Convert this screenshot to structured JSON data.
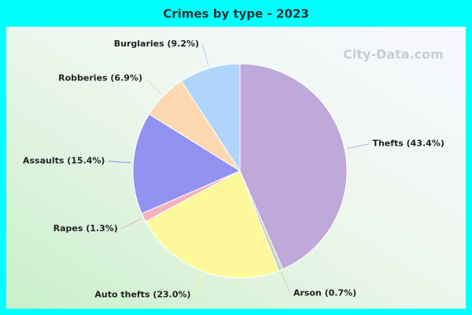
{
  "chart_data": {
    "type": "pie",
    "title": "Crimes by type - 2023",
    "categories": [
      "Thefts (43.4%)",
      "Arson (0.7%)",
      "Auto thefts (23.0%)",
      "Rapes (1.3%)",
      "Assaults (15.4%)",
      "Robberies (6.9%)",
      "Burglaries (9.2%)"
    ],
    "values": [
      43.4,
      0.7,
      23.0,
      1.3,
      15.4,
      6.9,
      9.2
    ],
    "colors": [
      "#bfa8da",
      "#c9d6bd",
      "#fdf99b",
      "#f5b1c0",
      "#9292f0",
      "#fed8b0",
      "#afd6fa"
    ],
    "watermark": "City-Data.com"
  }
}
